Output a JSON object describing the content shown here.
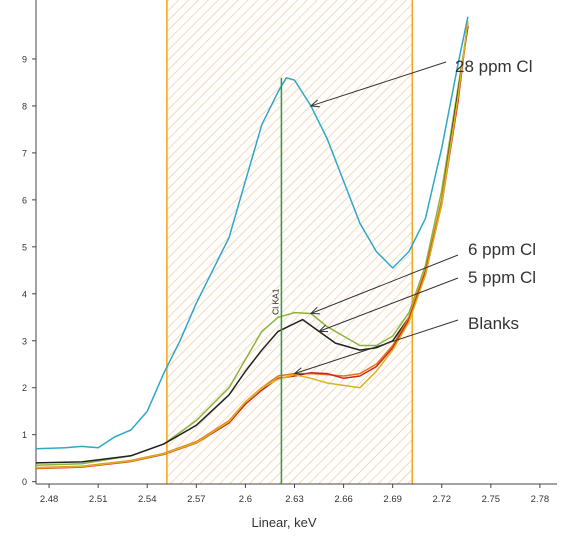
{
  "chart_data": {
    "type": "line",
    "xlabel": "Linear, keV",
    "ylabel": "",
    "xlim": [
      2.472,
      2.788
    ],
    "ylim": [
      -0.05,
      10.0
    ],
    "x_ticks": [
      "2.48",
      "2.51",
      "2.54",
      "2.57",
      "2.6",
      "2.63",
      "2.66",
      "2.69",
      "2.72",
      "2.75",
      "2.78"
    ],
    "y_ticks": [
      "0",
      "1",
      "2",
      "3",
      "4",
      "5",
      "6",
      "7",
      "8",
      "9"
    ],
    "grid": false,
    "region_of_interest": {
      "x_start": 2.552,
      "x_end": 2.702,
      "fill": "hatched"
    },
    "marker": {
      "x": 2.622,
      "label": "Cl KA1"
    },
    "annotations": [
      {
        "text": "28 ppm Cl",
        "target_series": "28 ppm Cl"
      },
      {
        "text": "6 ppm Cl",
        "target_series": "6 ppm Cl"
      },
      {
        "text": "5 ppm Cl",
        "target_series": "5 ppm Cl"
      },
      {
        "text": "Blanks",
        "target_series": "Blanks"
      }
    ],
    "series": [
      {
        "name": "28 ppm Cl",
        "color": "#2ea8c8",
        "points": [
          [
            2.472,
            0.7
          ],
          [
            2.49,
            0.72
          ],
          [
            2.5,
            0.75
          ],
          [
            2.51,
            0.72
          ],
          [
            2.52,
            0.95
          ],
          [
            2.53,
            1.1
          ],
          [
            2.54,
            1.5
          ],
          [
            2.55,
            2.3
          ],
          [
            2.56,
            3.0
          ],
          [
            2.57,
            3.8
          ],
          [
            2.58,
            4.5
          ],
          [
            2.59,
            5.2
          ],
          [
            2.6,
            6.4
          ],
          [
            2.61,
            7.6
          ],
          [
            2.62,
            8.3
          ],
          [
            2.625,
            8.6
          ],
          [
            2.63,
            8.55
          ],
          [
            2.64,
            8.0
          ],
          [
            2.65,
            7.3
          ],
          [
            2.66,
            6.4
          ],
          [
            2.67,
            5.5
          ],
          [
            2.68,
            4.9
          ],
          [
            2.69,
            4.55
          ],
          [
            2.7,
            4.9
          ],
          [
            2.71,
            5.6
          ],
          [
            2.72,
            7.1
          ],
          [
            2.73,
            8.9
          ],
          [
            2.736,
            9.9
          ]
        ]
      },
      {
        "name": "6 ppm Cl",
        "color": "#8ab43c",
        "points": [
          [
            2.472,
            0.35
          ],
          [
            2.5,
            0.38
          ],
          [
            2.53,
            0.55
          ],
          [
            2.55,
            0.8
          ],
          [
            2.57,
            1.3
          ],
          [
            2.59,
            2.0
          ],
          [
            2.6,
            2.6
          ],
          [
            2.61,
            3.2
          ],
          [
            2.62,
            3.5
          ],
          [
            2.63,
            3.6
          ],
          [
            2.64,
            3.58
          ],
          [
            2.65,
            3.3
          ],
          [
            2.66,
            3.1
          ],
          [
            2.67,
            2.9
          ],
          [
            2.68,
            2.9
          ],
          [
            2.69,
            3.1
          ],
          [
            2.7,
            3.6
          ],
          [
            2.71,
            4.6
          ],
          [
            2.72,
            6.2
          ],
          [
            2.73,
            8.4
          ],
          [
            2.736,
            9.7
          ]
        ]
      },
      {
        "name": "5 ppm Cl",
        "color": "#222222",
        "points": [
          [
            2.472,
            0.4
          ],
          [
            2.5,
            0.42
          ],
          [
            2.53,
            0.55
          ],
          [
            2.55,
            0.8
          ],
          [
            2.57,
            1.2
          ],
          [
            2.59,
            1.85
          ],
          [
            2.6,
            2.35
          ],
          [
            2.61,
            2.8
          ],
          [
            2.62,
            3.2
          ],
          [
            2.635,
            3.45
          ],
          [
            2.645,
            3.2
          ],
          [
            2.655,
            2.95
          ],
          [
            2.67,
            2.8
          ],
          [
            2.68,
            2.85
          ],
          [
            2.69,
            3.0
          ],
          [
            2.7,
            3.5
          ],
          [
            2.71,
            4.4
          ],
          [
            2.72,
            6.0
          ],
          [
            2.73,
            8.3
          ],
          [
            2.736,
            9.7
          ]
        ]
      },
      {
        "name": "Blanks",
        "color": "#e8741c",
        "points": [
          [
            2.472,
            0.3
          ],
          [
            2.5,
            0.33
          ],
          [
            2.53,
            0.45
          ],
          [
            2.55,
            0.6
          ],
          [
            2.57,
            0.85
          ],
          [
            2.59,
            1.3
          ],
          [
            2.6,
            1.7
          ],
          [
            2.61,
            2.0
          ],
          [
            2.62,
            2.25
          ],
          [
            2.63,
            2.3
          ],
          [
            2.64,
            2.3
          ],
          [
            2.65,
            2.28
          ],
          [
            2.66,
            2.25
          ],
          [
            2.67,
            2.3
          ],
          [
            2.68,
            2.5
          ],
          [
            2.69,
            2.9
          ],
          [
            2.7,
            3.5
          ],
          [
            2.71,
            4.5
          ],
          [
            2.72,
            6.0
          ],
          [
            2.73,
            8.2
          ],
          [
            2.736,
            9.8
          ]
        ]
      },
      {
        "name": "Blank",
        "color": "#cc2a1a",
        "points": [
          [
            2.472,
            0.28
          ],
          [
            2.5,
            0.31
          ],
          [
            2.53,
            0.43
          ],
          [
            2.55,
            0.58
          ],
          [
            2.57,
            0.82
          ],
          [
            2.59,
            1.25
          ],
          [
            2.6,
            1.65
          ],
          [
            2.61,
            1.95
          ],
          [
            2.62,
            2.2
          ],
          [
            2.63,
            2.25
          ],
          [
            2.64,
            2.32
          ],
          [
            2.65,
            2.3
          ],
          [
            2.66,
            2.2
          ],
          [
            2.67,
            2.25
          ],
          [
            2.68,
            2.45
          ],
          [
            2.69,
            2.85
          ],
          [
            2.7,
            3.45
          ],
          [
            2.71,
            4.45
          ],
          [
            2.72,
            5.9
          ],
          [
            2.73,
            8.1
          ],
          [
            2.736,
            9.8
          ]
        ]
      },
      {
        "name": "Blank",
        "color": "#d9b21c",
        "points": [
          [
            2.472,
            0.29
          ],
          [
            2.5,
            0.32
          ],
          [
            2.53,
            0.44
          ],
          [
            2.55,
            0.59
          ],
          [
            2.57,
            0.83
          ],
          [
            2.59,
            1.28
          ],
          [
            2.6,
            1.7
          ],
          [
            2.61,
            2.0
          ],
          [
            2.62,
            2.18
          ],
          [
            2.63,
            2.28
          ],
          [
            2.64,
            2.2
          ],
          [
            2.65,
            2.1
          ],
          [
            2.66,
            2.05
          ],
          [
            2.67,
            2.0
          ],
          [
            2.68,
            2.35
          ],
          [
            2.69,
            2.8
          ],
          [
            2.7,
            3.4
          ],
          [
            2.71,
            4.4
          ],
          [
            2.72,
            5.9
          ],
          [
            2.73,
            8.2
          ],
          [
            2.736,
            9.8
          ]
        ]
      }
    ]
  }
}
